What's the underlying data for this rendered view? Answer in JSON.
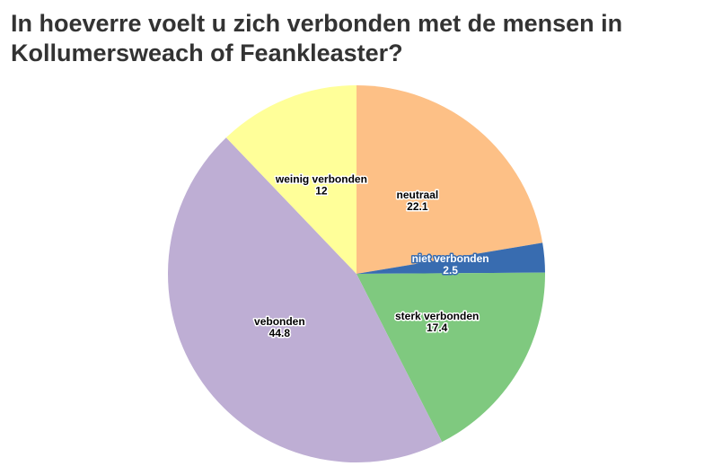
{
  "chart_data": {
    "type": "pie",
    "title": "In hoeverre voelt u zich verbonden met de mensen in Kollumersweach of Feankleaster?",
    "categories": [
      "neutraal",
      "niet verbonden",
      "sterk verbonden",
      "vebonden",
      "weinig verbonden"
    ],
    "values": [
      22.1,
      2.5,
      17.4,
      44.8,
      12
    ],
    "colors": [
      "#fdc086",
      "#386cb0",
      "#7fc97f",
      "#beaed4",
      "#ffff99"
    ]
  }
}
